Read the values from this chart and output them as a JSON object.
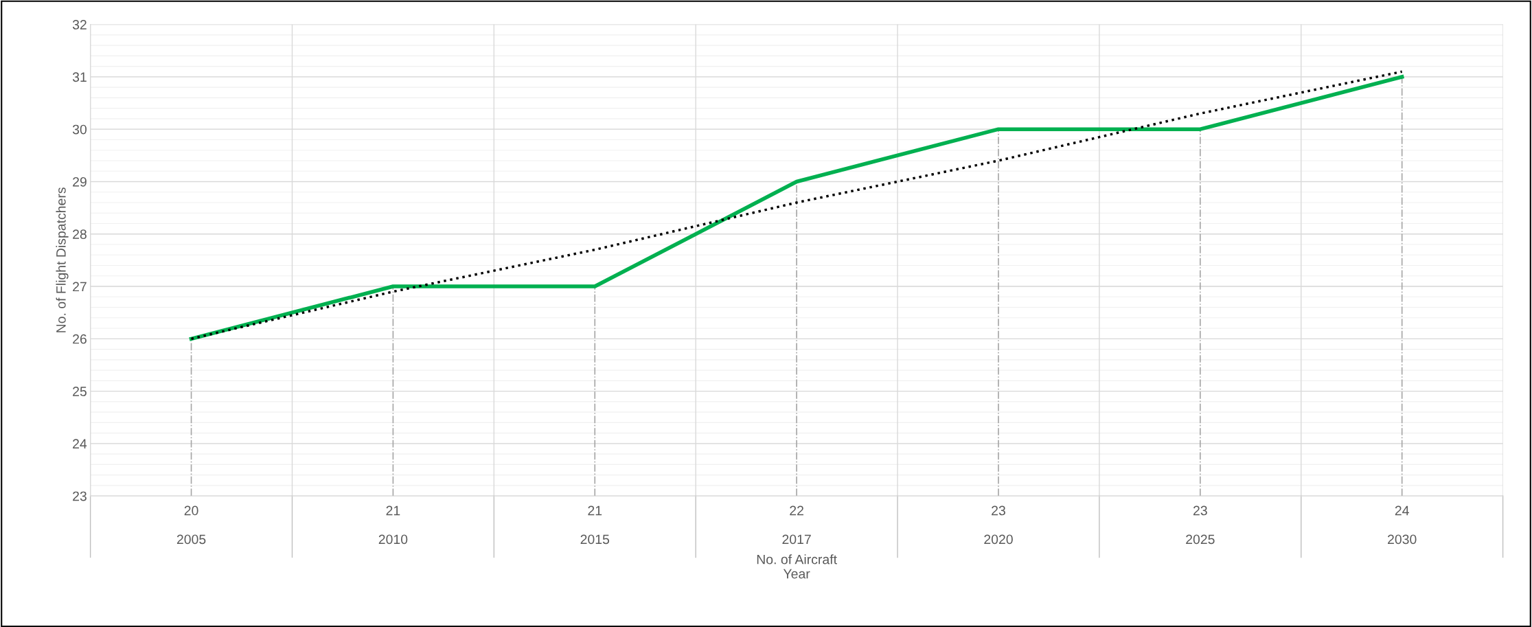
{
  "chart_data": {
    "type": "line",
    "xlabel": "No. of Aircraft\nYear",
    "ylabel": "No. of Flight Dispatchers",
    "categories": [
      "20\n\n2005",
      "21\n\n2010",
      "21\n\n2015",
      "22\n\n2017",
      "23\n\n2020",
      "23\n\n2025",
      "24\n\n2030"
    ],
    "series": [
      {
        "color": "#00b050",
        "values": [
          26,
          27,
          27,
          29,
          30,
          30,
          31
        ],
        "line_style": "solid"
      },
      {
        "type": "line",
        "color": "#000000",
        "x": [
          "20\n\n2005",
          "21\n\n2010",
          "21\n\n2015",
          "22\n\n2017",
          "23\n\n2020",
          "23\n\n2025",
          "24\n\n2030"
        ],
        "values": [
          26.0,
          26.9,
          27.7,
          28.6,
          29.4,
          30.3,
          31.1
        ],
        "line_style": "dotted"
      }
    ],
    "ylim": [
      23,
      32
    ],
    "yticks": [
      23,
      24,
      25,
      26,
      27,
      28,
      29,
      30,
      31,
      32
    ],
    "grid": true,
    "marker": "none"
  }
}
